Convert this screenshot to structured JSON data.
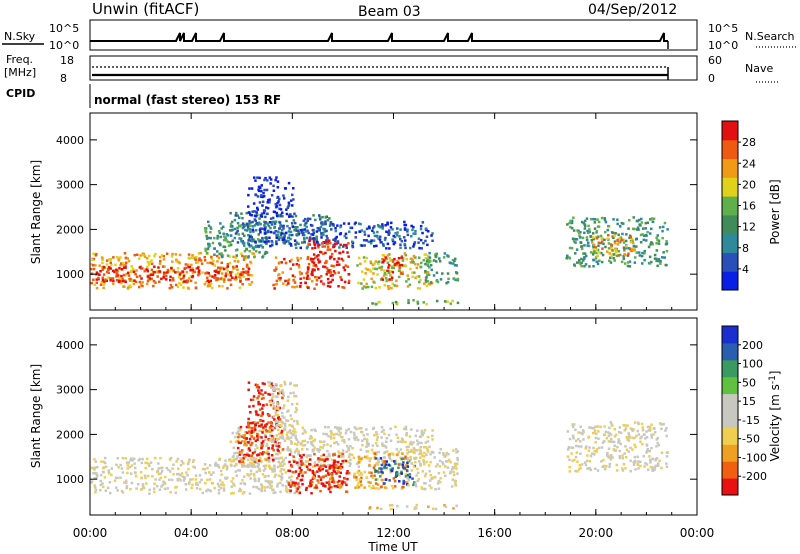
{
  "header": {
    "radar": "Unwin (fitACF)",
    "beam": "Beam 03",
    "date": "04/Sep/2012"
  },
  "noise_panel": {
    "left_label": "N.Sky",
    "right_label": "N.Search",
    "left_ticks": [
      "10^5",
      "10^0"
    ],
    "right_ticks": [
      "10^5",
      "10^0"
    ]
  },
  "freq_panel": {
    "left_label_1": "Freq.",
    "left_label_2": "[MHz]",
    "right_label": "Nave",
    "left_ticks": [
      "18",
      "8"
    ],
    "right_ticks": [
      "60",
      "0"
    ]
  },
  "cpid": {
    "label": "CPID",
    "text": "normal (fast stereo) 153 RF"
  },
  "colors": {
    "power_scale": [
      "#0a1fe6",
      "#2a4fb8",
      "#2e8a9a",
      "#3f8c5a",
      "#5fb04a",
      "#e0d21a",
      "#f09a16",
      "#ee5a10",
      "#e21010"
    ],
    "velocity_scale": [
      "#e81010",
      "#f06010",
      "#f0a020",
      "#f0cf50",
      "#c8c8c0",
      "#c8c8c0",
      "#60c040",
      "#3a9a60",
      "#2a5fb0",
      "#1a2fd0"
    ],
    "ground_scatter": "#c8c8c0"
  },
  "chart_data": {
    "type": "heatmap",
    "x_unit": "hours UT",
    "xlim": [
      0,
      24
    ],
    "ylim": [
      200,
      4600
    ],
    "xlabel": "Time UT",
    "ylabel": "Slant Range [km]",
    "x_ticks": [
      0,
      4,
      8,
      12,
      16,
      20,
      24
    ],
    "x_tick_labels": [
      "00:00",
      "04:00",
      "08:00",
      "12:00",
      "16:00",
      "20:00",
      "00:00"
    ],
    "y_ticks": [
      1000,
      2000,
      3000,
      4000
    ],
    "y_tick_labels": [
      "1000",
      "2000",
      "3000",
      "4000"
    ],
    "panels": [
      {
        "name": "power",
        "colorbar_label": "Power [dB]",
        "colorbar_ticks": [
          "4",
          "8",
          "12",
          "16",
          "20",
          "24",
          "28"
        ],
        "regions": [
          {
            "t0": 0.0,
            "t1": 6.5,
            "r0": 700,
            "r1": 1500,
            "level": 6
          },
          {
            "t0": 0.1,
            "t1": 6.3,
            "r0": 850,
            "r1": 1200,
            "level": 8
          },
          {
            "t0": 4.5,
            "t1": 7.0,
            "r0": 1400,
            "r1": 2200,
            "level": 3
          },
          {
            "t0": 5.5,
            "t1": 9.5,
            "r0": 1700,
            "r1": 2400,
            "level": 2
          },
          {
            "t0": 6.0,
            "t1": 13.5,
            "r0": 1600,
            "r1": 2200,
            "level": 1
          },
          {
            "t0": 6.2,
            "t1": 8.0,
            "r0": 2300,
            "r1": 3200,
            "level": 0
          },
          {
            "t0": 7.2,
            "t1": 9.0,
            "r0": 700,
            "r1": 1400,
            "level": 7
          },
          {
            "t0": 8.5,
            "t1": 10.2,
            "r0": 700,
            "r1": 1800,
            "level": 8
          },
          {
            "t0": 10.5,
            "t1": 13.5,
            "r0": 700,
            "r1": 1500,
            "level": 5
          },
          {
            "t0": 11.5,
            "t1": 12.3,
            "r0": 900,
            "r1": 1400,
            "level": 8
          },
          {
            "t0": 13.2,
            "t1": 14.5,
            "r0": 800,
            "r1": 1500,
            "level": 3
          },
          {
            "t0": 18.8,
            "t1": 22.8,
            "r0": 1200,
            "r1": 2300,
            "level": 3
          },
          {
            "t0": 19.8,
            "t1": 21.5,
            "r0": 1400,
            "r1": 1900,
            "level": 6
          },
          {
            "t0": 11.0,
            "t1": 14.5,
            "r0": 350,
            "r1": 450,
            "level": 4
          }
        ]
      },
      {
        "name": "velocity",
        "colorbar_label": "Velocity [m s^-1]",
        "colorbar_ticks": [
          "-200",
          "-100",
          "-50",
          "-15",
          "15",
          "50",
          "100",
          "200"
        ],
        "regions": [
          {
            "t0": 0.0,
            "t1": 8.5,
            "r0": 700,
            "r1": 1500,
            "level": 4
          },
          {
            "t0": 5.5,
            "t1": 13.5,
            "r0": 1300,
            "r1": 2200,
            "level": 4
          },
          {
            "t0": 5.8,
            "t1": 7.2,
            "r0": 1400,
            "r1": 2300,
            "level": 1
          },
          {
            "t0": 6.2,
            "t1": 7.6,
            "r0": 1500,
            "r1": 3200,
            "level": 0
          },
          {
            "t0": 7.0,
            "t1": 8.2,
            "r0": 1800,
            "r1": 3200,
            "level": 4
          },
          {
            "t0": 7.8,
            "t1": 10.2,
            "r0": 700,
            "r1": 1600,
            "level": 0
          },
          {
            "t0": 8.6,
            "t1": 10.0,
            "r0": 800,
            "r1": 1400,
            "level": 1
          },
          {
            "t0": 10.4,
            "t1": 12.5,
            "r0": 800,
            "r1": 1600,
            "level": 2
          },
          {
            "t0": 11.2,
            "t1": 12.8,
            "r0": 900,
            "r1": 1500,
            "level": 8
          },
          {
            "t0": 12.5,
            "t1": 14.5,
            "r0": 800,
            "r1": 1700,
            "level": 4
          },
          {
            "t0": 18.8,
            "t1": 22.8,
            "r0": 1200,
            "r1": 2300,
            "level": 4
          },
          {
            "t0": 11.0,
            "t1": 14.5,
            "r0": 350,
            "r1": 450,
            "level": 3
          }
        ]
      }
    ]
  }
}
